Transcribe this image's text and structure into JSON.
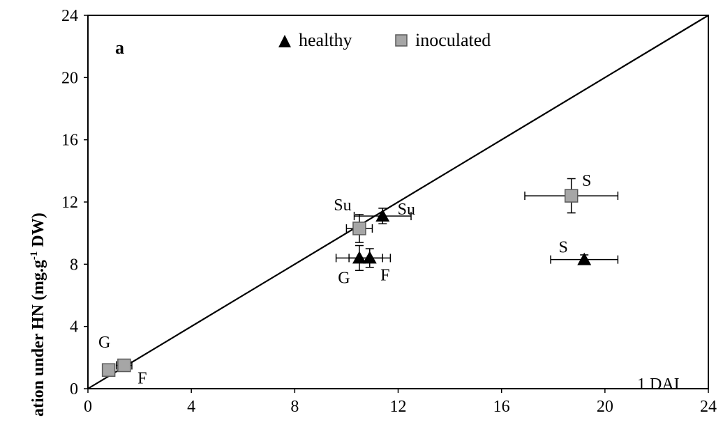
{
  "chart_data": {
    "type": "scatter",
    "panel_label": "a",
    "annotation": "1 DAI",
    "ylabel_main": "ation under HN (mg.g",
    "ylabel_sup": "-1",
    "ylabel_tail": " DW)",
    "xlim": [
      0,
      24
    ],
    "ylim": [
      0,
      24
    ],
    "xticks": [
      "0",
      "4",
      "8",
      "12",
      "16",
      "20",
      "24"
    ],
    "yticks": [
      "0",
      "4",
      "8",
      "12",
      "16",
      "20",
      "24"
    ],
    "reference_line": {
      "x": [
        0,
        24
      ],
      "y": [
        0,
        24
      ]
    },
    "legend": {
      "position": "top-center",
      "entries": [
        "healthy",
        "inoculated"
      ]
    },
    "colors": {
      "healthy": "#000000",
      "inoculated": "#a6a6a6",
      "inoculated_edge": "#595959"
    },
    "series": [
      {
        "name": "healthy",
        "marker": "triangle",
        "points": [
          {
            "label": "Su",
            "x": 11.4,
            "y": 11.1,
            "xerr": 1.1,
            "yerr": 0.5
          },
          {
            "label": "G",
            "x": 10.5,
            "y": 8.4,
            "xerr": 0.9,
            "yerr": 0.8
          },
          {
            "label": "F",
            "x": 10.9,
            "y": 8.4,
            "xerr": 0.8,
            "yerr": 0.6
          },
          {
            "label": "S",
            "x": 19.2,
            "y": 8.3,
            "xerr": 1.3,
            "yerr": 0.3
          }
        ]
      },
      {
        "name": "inoculated",
        "marker": "square",
        "points": [
          {
            "label": "Su",
            "x": 10.5,
            "y": 10.3,
            "xerr": 0.5,
            "yerr": 0.9
          },
          {
            "label": "S",
            "x": 18.7,
            "y": 12.4,
            "xerr": 1.8,
            "yerr": 1.1
          },
          {
            "label": "G",
            "x": 0.8,
            "y": 1.2,
            "xerr": 0.2,
            "yerr": 0.2
          },
          {
            "label": "F",
            "x": 1.4,
            "y": 1.5,
            "xerr": 0.3,
            "yerr": 0.2
          }
        ]
      }
    ]
  }
}
